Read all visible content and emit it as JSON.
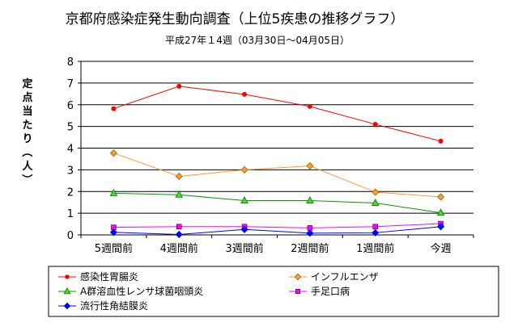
{
  "chart_data": {
    "type": "line",
    "title": "京都府感染症発生動向調査（上位5疾患の推移グラフ）",
    "subtitle": "平成27年１4週（03月30日～04月05日）",
    "ylabel": "定点当たり（人）",
    "categories": [
      "5週間前",
      "4週間前",
      "3週間前",
      "2週間前",
      "1週間前",
      "今週"
    ],
    "ylim": [
      0,
      8
    ],
    "yticks": [
      "0",
      "1",
      "2",
      "3",
      "4",
      "5",
      "6",
      "7",
      "8"
    ],
    "grid": true,
    "legend_position": "bottom",
    "series": [
      {
        "name": "感染性胃腸炎",
        "color": "#ff0000",
        "marker": "circle",
        "values": [
          5.82,
          6.85,
          6.48,
          5.92,
          5.1,
          4.32
        ]
      },
      {
        "name": "インフルエンザ",
        "color": "#ff9933",
        "marker": "diamond",
        "values": [
          3.77,
          2.7,
          3.0,
          3.18,
          1.97,
          1.75
        ]
      },
      {
        "name": "A群溶血性レンサ球菌咽頭炎",
        "color": "#009900",
        "marker": "triangle",
        "values": [
          1.92,
          1.85,
          1.58,
          1.58,
          1.47,
          1.02
        ]
      },
      {
        "name": "手足口病",
        "color": "#ff00ff",
        "marker": "square",
        "values": [
          0.35,
          0.38,
          0.38,
          0.32,
          0.38,
          0.52
        ]
      },
      {
        "name": "流行性角結膜炎",
        "color": "#0000ff",
        "marker": "diamond",
        "values": [
          0.12,
          0.02,
          0.25,
          0.08,
          0.1,
          0.38
        ]
      }
    ]
  }
}
